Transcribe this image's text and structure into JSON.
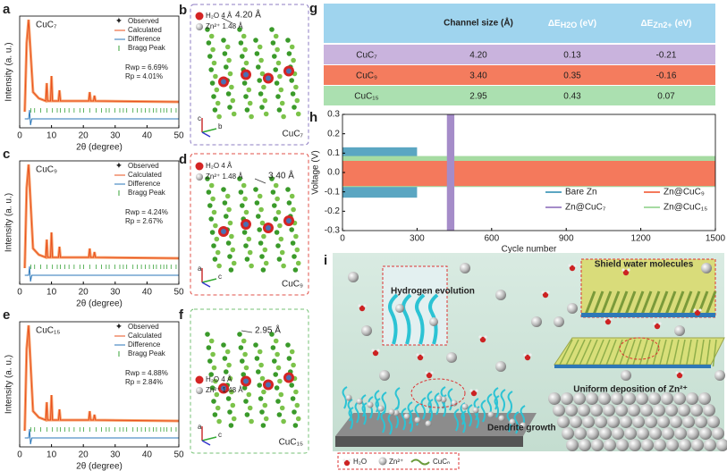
{
  "panels": {
    "a": {
      "label": "a",
      "title": "CuC₇",
      "legend": [
        "Observed",
        "Calculated",
        "Difference",
        "Bragg Peak"
      ],
      "stats": [
        "Rwp = 6.69%",
        "Rp = 4.01%"
      ],
      "ylabel": "Intensity (a. u.)",
      "xlabel": "2θ (degree)",
      "xticks": [
        0,
        10,
        20,
        30,
        40,
        50
      ]
    },
    "c": {
      "label": "c",
      "title": "CuC₉",
      "legend": [
        "Observed",
        "Calculated",
        "Difference",
        "Bragg Peak"
      ],
      "stats": [
        "Rwp = 4.24%",
        "Rp = 2.67%"
      ],
      "ylabel": "Intensity (a. u.)",
      "xlabel": "2θ (degree)",
      "xticks": [
        0,
        10,
        20,
        30,
        40,
        50
      ]
    },
    "e": {
      "label": "e",
      "title": "CuC₁₅",
      "legend": [
        "Observed",
        "Calculated",
        "Difference",
        "Bragg Peak"
      ],
      "stats": [
        "Rwp = 4.88%",
        "Rp = 2.84%"
      ],
      "ylabel": "Intensity (a. u.)",
      "xlabel": "2θ (degree)",
      "xticks": [
        0,
        10,
        20,
        30,
        40,
        50
      ]
    },
    "b": {
      "label": "b",
      "legend": [
        "H₂O  4 Å",
        "Zn²⁺  1.48 Å"
      ],
      "distance": "4.20 Å",
      "axes": [
        "c",
        "b"
      ],
      "name": "CuC₇"
    },
    "d": {
      "label": "d",
      "legend": [
        "H₂O  4 Å",
        "Zn²⁺  1.48 Å"
      ],
      "distance": "3.40 Å",
      "axes": [
        "a",
        "c"
      ],
      "name": "CuC₉"
    },
    "f": {
      "label": "f",
      "legend": [
        "H₂O  4 Å",
        "Zn²⁺  1.48 Å"
      ],
      "distance": "2.95 Å",
      "axes": [
        "a",
        "c"
      ],
      "name": "CuC₁₅"
    },
    "g": {
      "label": "g",
      "header": {
        "channel": "Channel size (Å)",
        "h2o": {
          "main": "ΔE",
          "sub": "H2O",
          "unit": "(eV)"
        },
        "zn": {
          "main": "ΔE",
          "sub": "Zn2+",
          "unit": "(eV)"
        }
      },
      "rows": [
        [
          "CuC₇",
          "4.20",
          "0.13",
          "-0.21"
        ],
        [
          "CuC₉",
          "3.40",
          "0.35",
          "-0.16"
        ],
        [
          "CuC₁₅",
          "2.95",
          "0.43",
          "0.07"
        ]
      ]
    },
    "h": {
      "label": "h",
      "ylabel": "Voltage (V)",
      "xlabel": "Cycle number",
      "ylim": [
        -0.3,
        0.3
      ],
      "yticks": [
        0.3,
        0.2,
        0.1,
        {
          "value": 0,
          "label": "0.0"
        },
        -0.1,
        -0.2,
        -0.3
      ],
      "xlim": [
        0,
        1500
      ],
      "xticks": [
        0,
        300,
        600,
        900,
        1200,
        1500
      ],
      "series": [
        {
          "name": "Bare Zn",
          "color": "#5ba6c2"
        },
        {
          "name": "Zn@CuC₇",
          "color": "#a58cc9"
        },
        {
          "name": "Zn@CuC₉",
          "color": "#f4795c"
        },
        {
          "name": "Zn@CuC₁₅",
          "color": "#a6dba2"
        }
      ]
    },
    "i": {
      "label": "i",
      "callouts": [
        "Hydrogen evolution",
        "Shield water molecules",
        "Dendrite growth",
        "Uniform deposition of Zn²⁺"
      ],
      "legend": [
        "H₂O",
        "Zn²⁺",
        "CuCₙ"
      ]
    }
  }
}
